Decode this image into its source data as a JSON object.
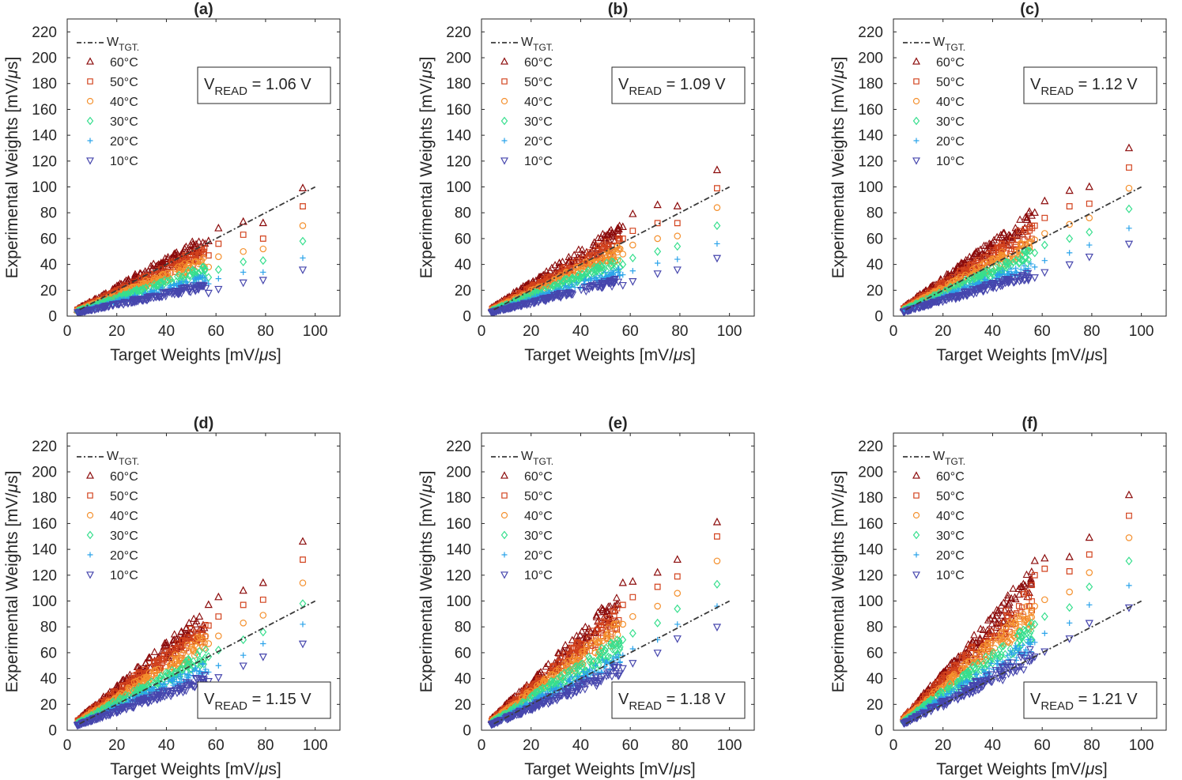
{
  "figure": {
    "x_axis_label_parts": [
      "Target Weights [mV/",
      "μ",
      "s]"
    ],
    "y_axis_label_parts": [
      "Experimental Weights [mV/",
      "μ",
      "s]"
    ],
    "legend": {
      "target_main": "W",
      "target_sub": "TGT.",
      "temperatures": [
        "60°C",
        "50°C",
        "40°C",
        "30°C",
        "20°C",
        "10°C"
      ],
      "markers": [
        "triangle-up",
        "square",
        "circle",
        "diamond",
        "plus",
        "triangle-down"
      ],
      "colors": [
        "#8b0a0a",
        "#d2421d",
        "#f4902e",
        "#37df8e",
        "#2aa3ea",
        "#4646ad"
      ]
    },
    "vread_label": {
      "main": "V",
      "sub": "READ",
      "equals": "=",
      "unit": "V"
    }
  },
  "chart_data": [
    {
      "type": "scatter",
      "title": "(a)",
      "vread_value": "1.06",
      "vread_box_position": "upper-right",
      "xlim": [
        0,
        110
      ],
      "ylim": [
        0,
        230
      ],
      "xticks": [
        0,
        20,
        40,
        60,
        80,
        100
      ],
      "yticks": [
        0,
        20,
        40,
        60,
        80,
        100,
        120,
        140,
        160,
        180,
        200,
        220
      ],
      "reference_line": {
        "name": "W_TGT.",
        "x": [
          5,
          100
        ],
        "y": [
          5,
          100
        ]
      },
      "highlight_x": [
        57,
        61,
        71,
        79,
        95
      ],
      "series": [
        {
          "name": "60°C",
          "slope": 1.0,
          "highlight_y": [
            58,
            68,
            73,
            72,
            99
          ]
        },
        {
          "name": "50°C",
          "slope": 0.86,
          "highlight_y": [
            47,
            56,
            63,
            60,
            85
          ]
        },
        {
          "name": "40°C",
          "slope": 0.74,
          "highlight_y": [
            38,
            46,
            50,
            52,
            70
          ]
        },
        {
          "name": "30°C",
          "slope": 0.62,
          "highlight_y": [
            30,
            36,
            42,
            43,
            58
          ]
        },
        {
          "name": "20°C",
          "slope": 0.5,
          "highlight_y": [
            25,
            29,
            34,
            34,
            45
          ]
        },
        {
          "name": "10°C",
          "slope": 0.4,
          "highlight_y": [
            18,
            21,
            26,
            28,
            36
          ]
        }
      ]
    },
    {
      "type": "scatter",
      "title": "(b)",
      "vread_value": "1.09",
      "vread_box_position": "upper-right",
      "xlim": [
        0,
        110
      ],
      "ylim": [
        0,
        230
      ],
      "xticks": [
        0,
        20,
        40,
        60,
        80,
        100
      ],
      "yticks": [
        0,
        20,
        40,
        60,
        80,
        100,
        120,
        140,
        160,
        180,
        200,
        220
      ],
      "reference_line": {
        "name": "W_TGT.",
        "x": [
          5,
          100
        ],
        "y": [
          5,
          100
        ]
      },
      "highlight_x": [
        57,
        61,
        71,
        79,
        95
      ],
      "series": [
        {
          "name": "60°C",
          "slope": 1.15,
          "highlight_y": [
            69,
            79,
            86,
            85,
            113
          ]
        },
        {
          "name": "50°C",
          "slope": 1.0,
          "highlight_y": [
            60,
            66,
            72,
            72,
            99
          ]
        },
        {
          "name": "40°C",
          "slope": 0.86,
          "highlight_y": [
            48,
            55,
            60,
            62,
            84
          ]
        },
        {
          "name": "30°C",
          "slope": 0.72,
          "highlight_y": [
            40,
            45,
            50,
            54,
            70
          ]
        },
        {
          "name": "20°C",
          "slope": 0.58,
          "highlight_y": [
            32,
            35,
            41,
            44,
            56
          ]
        },
        {
          "name": "10°C",
          "slope": 0.47,
          "highlight_y": [
            24,
            27,
            33,
            36,
            45
          ]
        }
      ]
    },
    {
      "type": "scatter",
      "title": "(c)",
      "vread_value": "1.12",
      "vread_box_position": "upper-right",
      "xlim": [
        0,
        110
      ],
      "ylim": [
        0,
        230
      ],
      "xticks": [
        0,
        20,
        40,
        60,
        80,
        100
      ],
      "yticks": [
        0,
        20,
        40,
        60,
        80,
        100,
        120,
        140,
        160,
        180,
        200,
        220
      ],
      "reference_line": {
        "name": "W_TGT.",
        "x": [
          5,
          100
        ],
        "y": [
          5,
          100
        ]
      },
      "highlight_x": [
        57,
        61,
        71,
        79,
        95
      ],
      "series": [
        {
          "name": "60°C",
          "slope": 1.3,
          "highlight_y": [
            80,
            89,
            97,
            100,
            130
          ]
        },
        {
          "name": "50°C",
          "slope": 1.14,
          "highlight_y": [
            70,
            76,
            85,
            87,
            115
          ]
        },
        {
          "name": "40°C",
          "slope": 0.98,
          "highlight_y": [
            59,
            64,
            71,
            76,
            99
          ]
        },
        {
          "name": "30°C",
          "slope": 0.83,
          "highlight_y": [
            49,
            55,
            60,
            65,
            83
          ]
        },
        {
          "name": "20°C",
          "slope": 0.68,
          "highlight_y": [
            38,
            43,
            49,
            55,
            68
          ]
        },
        {
          "name": "10°C",
          "slope": 0.56,
          "highlight_y": [
            30,
            34,
            40,
            46,
            56
          ]
        }
      ]
    },
    {
      "type": "scatter",
      "title": "(d)",
      "vread_value": "1.15",
      "vread_box_position": "lower-right",
      "xlim": [
        0,
        110
      ],
      "ylim": [
        0,
        230
      ],
      "xticks": [
        0,
        20,
        40,
        60,
        80,
        100
      ],
      "yticks": [
        0,
        20,
        40,
        60,
        80,
        100,
        120,
        140,
        160,
        180,
        200,
        220
      ],
      "reference_line": {
        "name": "W_TGT.",
        "x": [
          5,
          100
        ],
        "y": [
          5,
          100
        ]
      },
      "highlight_x": [
        57,
        61,
        71,
        79,
        95
      ],
      "series": [
        {
          "name": "60°C",
          "slope": 1.52,
          "highlight_y": [
            97,
            103,
            108,
            114,
            146
          ]
        },
        {
          "name": "50°C",
          "slope": 1.36,
          "highlight_y": [
            81,
            88,
            97,
            101,
            132
          ]
        },
        {
          "name": "40°C",
          "slope": 1.18,
          "highlight_y": [
            67,
            73,
            83,
            89,
            114
          ]
        },
        {
          "name": "30°C",
          "slope": 1.0,
          "highlight_y": [
            57,
            62,
            70,
            76,
            98
          ]
        },
        {
          "name": "20°C",
          "slope": 0.83,
          "highlight_y": [
            45,
            50,
            58,
            67,
            82
          ]
        },
        {
          "name": "10°C",
          "slope": 0.69,
          "highlight_y": [
            38,
            41,
            50,
            57,
            67
          ]
        }
      ]
    },
    {
      "type": "scatter",
      "title": "(e)",
      "vread_value": "1.18",
      "vread_box_position": "lower-right",
      "xlim": [
        0,
        110
      ],
      "ylim": [
        0,
        230
      ],
      "xticks": [
        0,
        20,
        40,
        60,
        80,
        100
      ],
      "yticks": [
        0,
        20,
        40,
        60,
        80,
        100,
        120,
        140,
        160,
        180,
        200,
        220
      ],
      "reference_line": {
        "name": "W_TGT.",
        "x": [
          5,
          100
        ],
        "y": [
          5,
          100
        ]
      },
      "highlight_x": [
        57,
        61,
        71,
        79,
        95
      ],
      "series": [
        {
          "name": "60°C",
          "slope": 1.72,
          "highlight_y": [
            114,
            115,
            122,
            132,
            161
          ]
        },
        {
          "name": "50°C",
          "slope": 1.55,
          "highlight_y": [
            97,
            103,
            111,
            119,
            150
          ]
        },
        {
          "name": "40°C",
          "slope": 1.35,
          "highlight_y": [
            82,
            88,
            96,
            106,
            131
          ]
        },
        {
          "name": "30°C",
          "slope": 1.16,
          "highlight_y": [
            70,
            75,
            83,
            94,
            113
          ]
        },
        {
          "name": "20°C",
          "slope": 0.97,
          "highlight_y": [
            58,
            63,
            70,
            82,
            96
          ]
        },
        {
          "name": "10°C",
          "slope": 0.82,
          "highlight_y": [
            48,
            52,
            60,
            71,
            80
          ]
        }
      ]
    },
    {
      "type": "scatter",
      "title": "(f)",
      "vread_value": "1.21",
      "vread_box_position": "lower-right",
      "xlim": [
        0,
        110
      ],
      "ylim": [
        0,
        230
      ],
      "xticks": [
        0,
        20,
        40,
        60,
        80,
        100
      ],
      "yticks": [
        0,
        20,
        40,
        60,
        80,
        100,
        120,
        140,
        160,
        180,
        200,
        220
      ],
      "reference_line": {
        "name": "W_TGT.",
        "x": [
          5,
          100
        ],
        "y": [
          5,
          100
        ]
      },
      "highlight_x": [
        57,
        61,
        71,
        79,
        95
      ],
      "series": [
        {
          "name": "60°C",
          "slope": 2.0,
          "highlight_y": [
            131,
            133,
            134,
            149,
            182
          ]
        },
        {
          "name": "50°C",
          "slope": 1.8,
          "highlight_y": [
            120,
            125,
            123,
            136,
            166
          ]
        },
        {
          "name": "40°C",
          "slope": 1.58,
          "highlight_y": [
            96,
            101,
            107,
            122,
            149
          ]
        },
        {
          "name": "30°C",
          "slope": 1.36,
          "highlight_y": [
            82,
            88,
            95,
            111,
            131
          ]
        },
        {
          "name": "20°C",
          "slope": 1.16,
          "highlight_y": [
            68,
            75,
            83,
            97,
            112
          ]
        },
        {
          "name": "10°C",
          "slope": 0.99,
          "highlight_y": [
            57,
            61,
            71,
            83,
            95
          ]
        }
      ]
    }
  ]
}
